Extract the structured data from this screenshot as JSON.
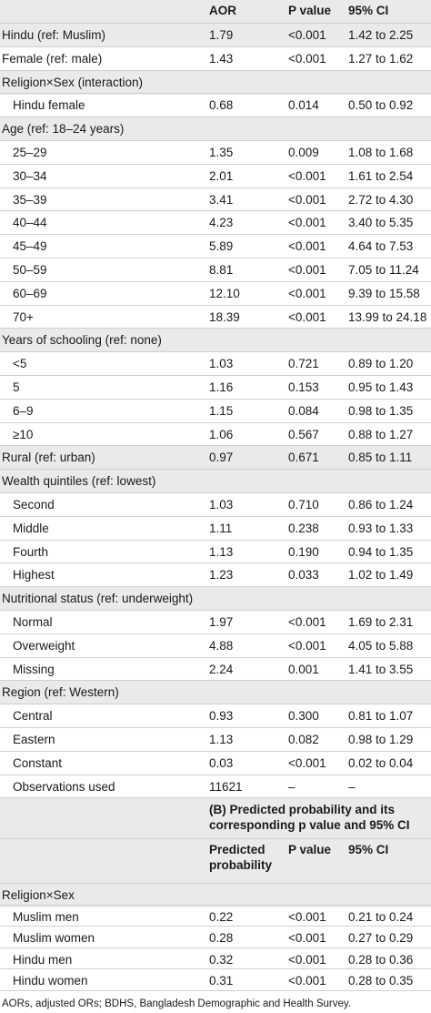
{
  "header": {
    "c1": "AOR",
    "c2": "P value",
    "c3": "95% CI"
  },
  "rows_a": [
    {
      "label": "Hindu (ref: Muslim)",
      "aor": "1.79",
      "p": "<0.001",
      "ci": "1.42 to 2.25",
      "indent": false
    },
    {
      "label": "Female (ref: male)",
      "aor": "1.43",
      "p": "<0.001",
      "ci": "1.27 to 1.62",
      "indent": false
    },
    {
      "label": "Religion×Sex (interaction)",
      "aor": "",
      "p": "",
      "ci": "",
      "indent": false
    },
    {
      "label": "Hindu female",
      "aor": "0.68",
      "p": "0.014",
      "ci": "0.50 to 0.92",
      "indent": true
    },
    {
      "label": "Age (ref: 18–24 years)",
      "aor": "",
      "p": "",
      "ci": "",
      "indent": false
    },
    {
      "label": "25–29",
      "aor": "1.35",
      "p": "0.009",
      "ci": "1.08 to 1.68",
      "indent": true
    },
    {
      "label": "30–34",
      "aor": "2.01",
      "p": "<0.001",
      "ci": "1.61 to 2.54",
      "indent": true
    },
    {
      "label": "35–39",
      "aor": "3.41",
      "p": "<0.001",
      "ci": "2.72 to 4.30",
      "indent": true
    },
    {
      "label": "40–44",
      "aor": "4.23",
      "p": "<0.001",
      "ci": "3.40 to 5.35",
      "indent": true
    },
    {
      "label": "45–49",
      "aor": "5.89",
      "p": "<0.001",
      "ci": "4.64 to 7.53",
      "indent": true
    },
    {
      "label": "50–59",
      "aor": "8.81",
      "p": "<0.001",
      "ci": "7.05 to 11.24",
      "indent": true
    },
    {
      "label": "60–69",
      "aor": "12.10",
      "p": "<0.001",
      "ci": "9.39 to 15.58",
      "indent": true
    },
    {
      "label": "70+",
      "aor": "18.39",
      "p": "<0.001",
      "ci": "13.99 to 24.18",
      "indent": true
    },
    {
      "label": "Years of schooling (ref: none)",
      "aor": "",
      "p": "",
      "ci": "",
      "indent": false
    },
    {
      "label": "<5",
      "aor": "1.03",
      "p": "0.721",
      "ci": "0.89 to 1.20",
      "indent": true
    },
    {
      "label": "5",
      "aor": "1.16",
      "p": "0.153",
      "ci": "0.95 to 1.43",
      "indent": true
    },
    {
      "label": "6–9",
      "aor": "1.15",
      "p": "0.084",
      "ci": "0.98 to 1.35",
      "indent": true
    },
    {
      "label": "≥10",
      "aor": "1.06",
      "p": "0.567",
      "ci": "0.88 to 1.27",
      "indent": true
    },
    {
      "label": "Rural (ref: urban)",
      "aor": "0.97",
      "p": "0.671",
      "ci": "0.85 to 1.11",
      "indent": false
    },
    {
      "label": "Wealth quintiles (ref: lowest)",
      "aor": "",
      "p": "",
      "ci": "",
      "indent": false
    },
    {
      "label": "Second",
      "aor": "1.03",
      "p": "0.710",
      "ci": "0.86 to 1.24",
      "indent": true
    },
    {
      "label": "Middle",
      "aor": "1.11",
      "p": "0.238",
      "ci": "0.93 to 1.33",
      "indent": true
    },
    {
      "label": "Fourth",
      "aor": "1.13",
      "p": "0.190",
      "ci": "0.94 to 1.35",
      "indent": true
    },
    {
      "label": "Highest",
      "aor": "1.23",
      "p": "0.033",
      "ci": "1.02 to 1.49",
      "indent": true
    },
    {
      "label": "Nutritional status (ref: underweight)",
      "aor": "",
      "p": "",
      "ci": "",
      "indent": false
    },
    {
      "label": "Normal",
      "aor": "1.97",
      "p": "<0.001",
      "ci": "1.69 to 2.31",
      "indent": true
    },
    {
      "label": "Overweight",
      "aor": "4.88",
      "p": "<0.001",
      "ci": "4.05 to 5.88",
      "indent": true
    },
    {
      "label": "Missing",
      "aor": "2.24",
      "p": "0.001",
      "ci": "1.41 to 3.55",
      "indent": true
    },
    {
      "label": "Region (ref: Western)",
      "aor": "",
      "p": "",
      "ci": "",
      "indent": false
    },
    {
      "label": "Central",
      "aor": "0.93",
      "p": "0.300",
      "ci": "0.81 to 1.07",
      "indent": true
    },
    {
      "label": "Eastern",
      "aor": "1.13",
      "p": "0.082",
      "ci": "0.98 to 1.29",
      "indent": true
    },
    {
      "label": "Constant",
      "aor": "0.03",
      "p": "<0.001",
      "ci": "0.02 to 0.04",
      "indent": true
    },
    {
      "label": "Observations used",
      "aor": "11621",
      "p": "–",
      "ci": "–",
      "indent": true
    }
  ],
  "section_b": {
    "title": "(B) Predicted probability and its corresponding p value and 95% CI",
    "h1": "Predicted probability",
    "h2": "P value",
    "h3": "95% CI"
  },
  "rows_b": [
    {
      "label": "Religion×Sex",
      "val": "",
      "p": "",
      "ci": "",
      "indent": false
    },
    {
      "label": "Muslim men",
      "val": "0.22",
      "p": "<0.001",
      "ci": "0.21 to 0.24",
      "indent": true
    },
    {
      "label": "Muslim women",
      "val": "0.28",
      "p": "<0.001",
      "ci": "0.27 to 0.29",
      "indent": true
    },
    {
      "label": "Hindu men",
      "val": "0.32",
      "p": "<0.001",
      "ci": "0.28 to 0.36",
      "indent": true
    },
    {
      "label": "Hindu women",
      "val": "0.31",
      "p": "<0.001",
      "ci": "0.28 to 0.35",
      "indent": true
    }
  ],
  "footnote": "AORs, adjusted ORs; BDHS, Bangladesh Demographic and Health Survey."
}
